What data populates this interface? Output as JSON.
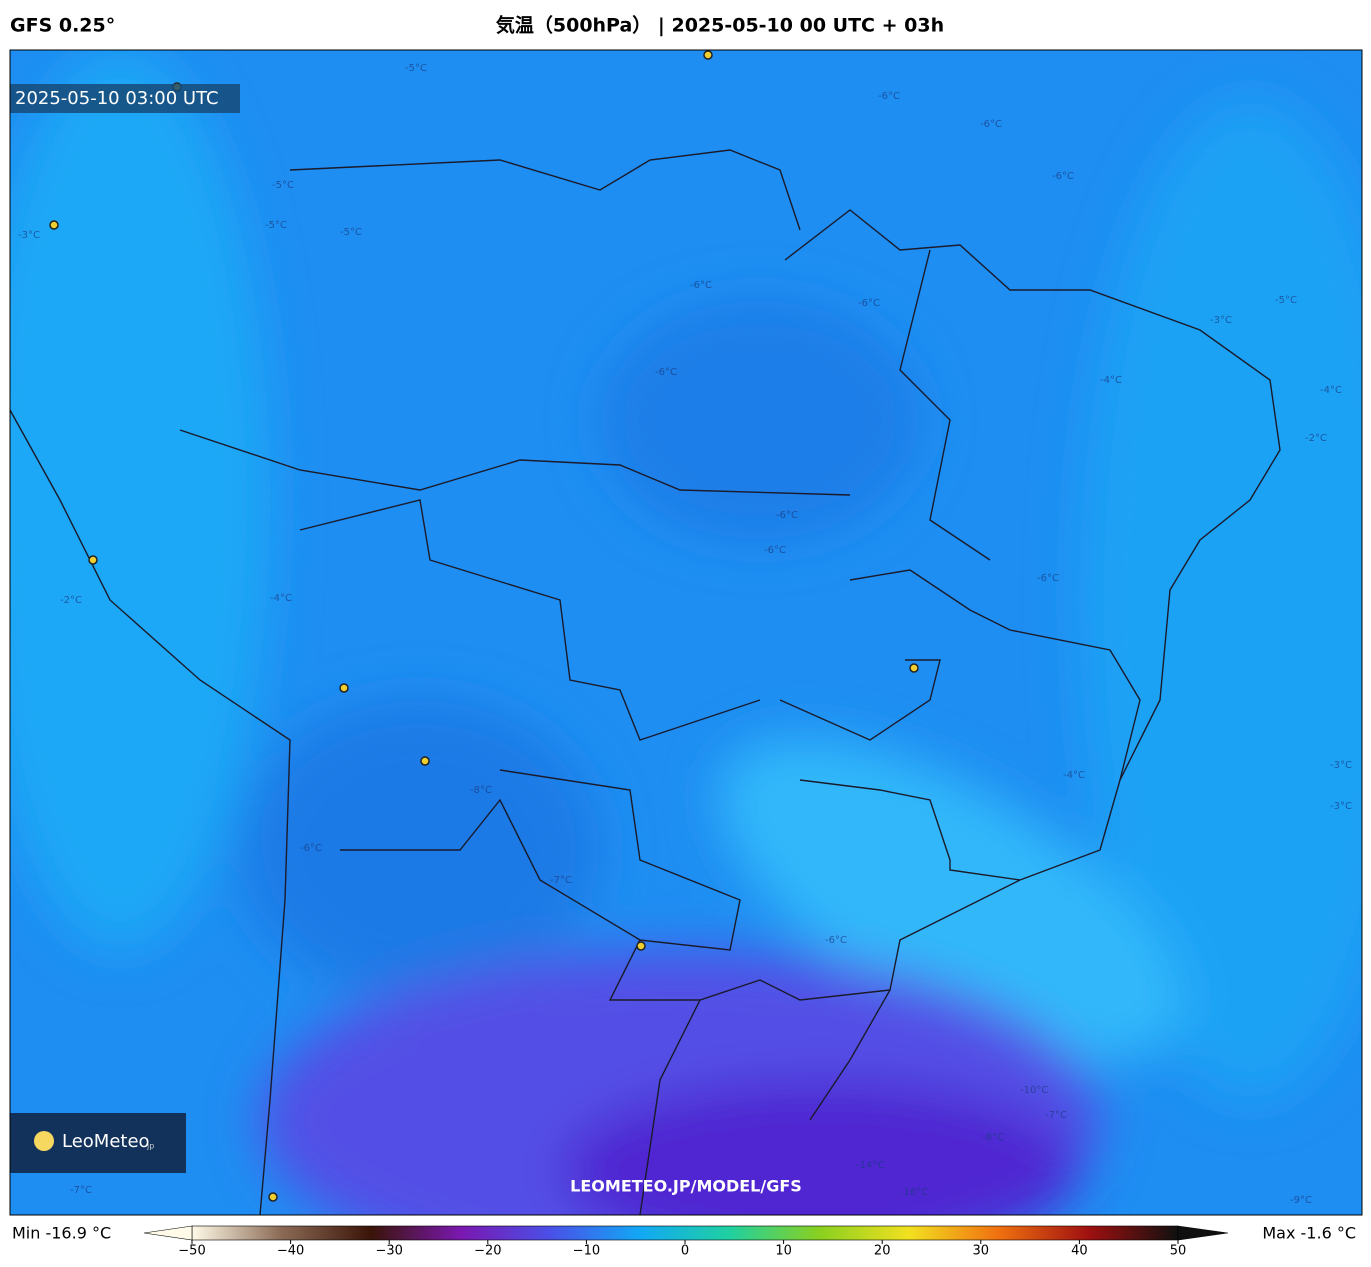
{
  "header": {
    "model": "GFS 0.25°",
    "title": "気温（500hPa） | 2025-05-10 00 UTC + 03h"
  },
  "map": {
    "valid_time": "2025-05-10 03:00 UTC",
    "watermark": "LEOMETEO.JP/MODEL/GFS",
    "logo": "LeoMeteo",
    "logo_suffix": "jp",
    "contour_labels": [
      "-5°C",
      "-6°C",
      "-6°C",
      "-5°C",
      "-6°C",
      "-6°C",
      "-5°C",
      "-3°C",
      "-5°C",
      "-6°C",
      "-6°C",
      "-5°C",
      "-4°C",
      "-4°C",
      "-2°C",
      "-4°C",
      "-3°C",
      "-6°C",
      "-6°C",
      "-6°C",
      "-4°C",
      "-3°C",
      "-2°C",
      "-3°C",
      "-6°C",
      "-7°C",
      "-8°C",
      "-6°C",
      "-7°C",
      "-10°C",
      "-14°C",
      "-16°C",
      "-8°C",
      "-9°C",
      "-7°C"
    ]
  },
  "colorbar": {
    "min_label": "Min -16.9 °C",
    "max_label": "Max -1.6 °C",
    "lim": [
      -50,
      50
    ],
    "ticks": [
      {
        "value": -50,
        "label": "−50"
      },
      {
        "value": -40,
        "label": "−40"
      },
      {
        "value": -30,
        "label": "−30"
      },
      {
        "value": -20,
        "label": "−20"
      },
      {
        "value": -10,
        "label": "−10"
      },
      0,
      10,
      20,
      30,
      40,
      50
    ],
    "colors": [
      "#fffbe8",
      "#8a6a55",
      "#3a1408",
      "#7a18b0",
      "#4a50e8",
      "#12a8f5",
      "#20d0a0",
      "#8ad020",
      "#f2e020",
      "#f07010",
      "#a01010",
      "#101010"
    ]
  }
}
